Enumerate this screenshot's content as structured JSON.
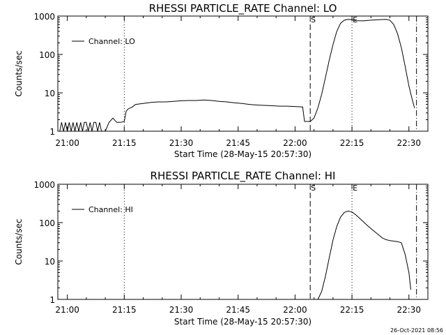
{
  "footer": {
    "timestamp": "26-Oct-2021 08:56"
  },
  "chart_data": [
    {
      "type": "line",
      "title": "RHESSI PARTICLE_RATE Channel: LO",
      "xlabel": "Start Time (28-May-15 20:57:30)",
      "ylabel": "Counts/sec",
      "yscale": "log",
      "ylim": [
        1,
        1000
      ],
      "xlim": [
        "20:57:30",
        "22:35:00"
      ],
      "x_ticks": [
        "21:00",
        "21:15",
        "21:30",
        "21:45",
        "22:00",
        "22:15",
        "22:30"
      ],
      "y_ticks": [
        "1",
        "10",
        "100",
        "1000"
      ],
      "legend": {
        "label": "Channel: LO",
        "placement": "top-left"
      },
      "vlines": [
        {
          "label": "",
          "x": "21:15",
          "style": "dotted"
        },
        {
          "label": "S",
          "x": "22:04",
          "style": "dashed"
        },
        {
          "label": "E",
          "x": "22:15",
          "style": "dotted"
        },
        {
          "label": "",
          "x": "22:32",
          "style": "dashdot"
        }
      ],
      "series": [
        {
          "name": "Channel: LO",
          "points": [
            [
              "20:58",
              1.0
            ],
            [
              "20:58:30",
              1.7
            ],
            [
              "20:59",
              1.0
            ],
            [
              "20:59:30",
              1.7
            ],
            [
              "21:00",
              1.0
            ],
            [
              "21:00:30",
              1.7
            ],
            [
              "21:01",
              1.0
            ],
            [
              "21:01:30",
              1.7
            ],
            [
              "21:02",
              1.0
            ],
            [
              "21:02:30",
              1.7
            ],
            [
              "21:03",
              1.0
            ],
            [
              "21:03:30",
              1.7
            ],
            [
              "21:04",
              1.0
            ],
            [
              "21:04:30",
              1.7
            ],
            [
              "21:05",
              1.7
            ],
            [
              "21:05:30",
              1.0
            ],
            [
              "21:06",
              1.7
            ],
            [
              "21:06:30",
              1.0
            ],
            [
              "21:07",
              1.7
            ],
            [
              "21:07:30",
              1.7
            ],
            [
              "21:08",
              1.0
            ],
            [
              "21:08:30",
              1.7
            ],
            [
              "21:09",
              1.0
            ],
            [
              "21:10",
              1.0
            ],
            [
              "21:11",
              1.7
            ],
            [
              "21:12",
              2.2
            ],
            [
              "21:13",
              1.7
            ],
            [
              "21:14",
              1.7
            ],
            [
              "21:15",
              1.8
            ],
            [
              "21:15:30",
              3.3
            ],
            [
              "21:16",
              3.8
            ],
            [
              "21:17",
              4.2
            ],
            [
              "21:18",
              5.0
            ],
            [
              "21:20",
              5.3
            ],
            [
              "21:22",
              5.6
            ],
            [
              "21:24",
              5.8
            ],
            [
              "21:26",
              5.8
            ],
            [
              "21:28",
              6.0
            ],
            [
              "21:30",
              6.2
            ],
            [
              "21:32",
              6.3
            ],
            [
              "21:34",
              6.3
            ],
            [
              "21:36",
              6.5
            ],
            [
              "21:38",
              6.3
            ],
            [
              "21:40",
              6.0
            ],
            [
              "21:42",
              5.8
            ],
            [
              "21:44",
              5.5
            ],
            [
              "21:46",
              5.3
            ],
            [
              "21:48",
              5.0
            ],
            [
              "21:50",
              4.8
            ],
            [
              "21:52",
              4.7
            ],
            [
              "21:54",
              4.6
            ],
            [
              "21:56",
              4.5
            ],
            [
              "21:58",
              4.5
            ],
            [
              "22:00",
              4.4
            ],
            [
              "22:02",
              4.3
            ],
            [
              "22:02:30",
              1.8
            ],
            [
              "22:04",
              1.8
            ],
            [
              "22:05",
              2.2
            ],
            [
              "22:06",
              4.0
            ],
            [
              "22:07",
              9.0
            ],
            [
              "22:08",
              25
            ],
            [
              "22:09",
              70
            ],
            [
              "22:10",
              180
            ],
            [
              "22:11",
              400
            ],
            [
              "22:12",
              650
            ],
            [
              "22:13",
              780
            ],
            [
              "22:14",
              820
            ],
            [
              "22:15",
              800
            ],
            [
              "22:16",
              760
            ],
            [
              "22:18",
              750
            ],
            [
              "22:20",
              780
            ],
            [
              "22:22",
              800
            ],
            [
              "22:24",
              820
            ],
            [
              "22:25",
              780
            ],
            [
              "22:26",
              600
            ],
            [
              "22:27",
              350
            ],
            [
              "22:28",
              150
            ],
            [
              "22:29",
              50
            ],
            [
              "22:30",
              15
            ],
            [
              "22:31",
              6
            ],
            [
              "22:31:30",
              4
            ]
          ]
        }
      ]
    },
    {
      "type": "line",
      "title": "RHESSI PARTICLE_RATE Channel: HI",
      "xlabel": "Start Time (28-May-15 20:57:30)",
      "ylabel": "Counts/sec",
      "yscale": "log",
      "ylim": [
        1,
        1000
      ],
      "xlim": [
        "20:57:30",
        "22:35:00"
      ],
      "x_ticks": [
        "21:00",
        "21:15",
        "21:30",
        "21:45",
        "22:00",
        "22:15",
        "22:30"
      ],
      "y_ticks": [
        "1",
        "10",
        "100",
        "1000"
      ],
      "legend": {
        "label": "Channel: HI",
        "placement": "top-left"
      },
      "vlines": [
        {
          "label": "",
          "x": "21:15",
          "style": "dotted"
        },
        {
          "label": "S",
          "x": "22:04",
          "style": "dashed"
        },
        {
          "label": "E",
          "x": "22:15",
          "style": "dotted"
        },
        {
          "label": "",
          "x": "22:32",
          "style": "dashdot"
        }
      ],
      "series": [
        {
          "name": "Channel: HI",
          "points": [
            [
              "22:06",
              1.0
            ],
            [
              "22:07",
              1.6
            ],
            [
              "22:08",
              4
            ],
            [
              "22:09",
              12
            ],
            [
              "22:10",
              35
            ],
            [
              "22:11",
              80
            ],
            [
              "22:12",
              140
            ],
            [
              "22:13",
              185
            ],
            [
              "22:14",
              200
            ],
            [
              "22:15",
              190
            ],
            [
              "22:16",
              160
            ],
            [
              "22:17",
              130
            ],
            [
              "22:18",
              105
            ],
            [
              "22:19",
              85
            ],
            [
              "22:20",
              70
            ],
            [
              "22:21",
              58
            ],
            [
              "22:22",
              48
            ],
            [
              "22:23",
              40
            ],
            [
              "22:24",
              36
            ],
            [
              "22:25",
              34
            ],
            [
              "22:26",
              33
            ],
            [
              "22:27",
              32
            ],
            [
              "22:28",
              30
            ],
            [
              "22:29",
              15
            ],
            [
              "22:30",
              5
            ],
            [
              "22:30:30",
              1.8
            ]
          ]
        }
      ]
    }
  ]
}
